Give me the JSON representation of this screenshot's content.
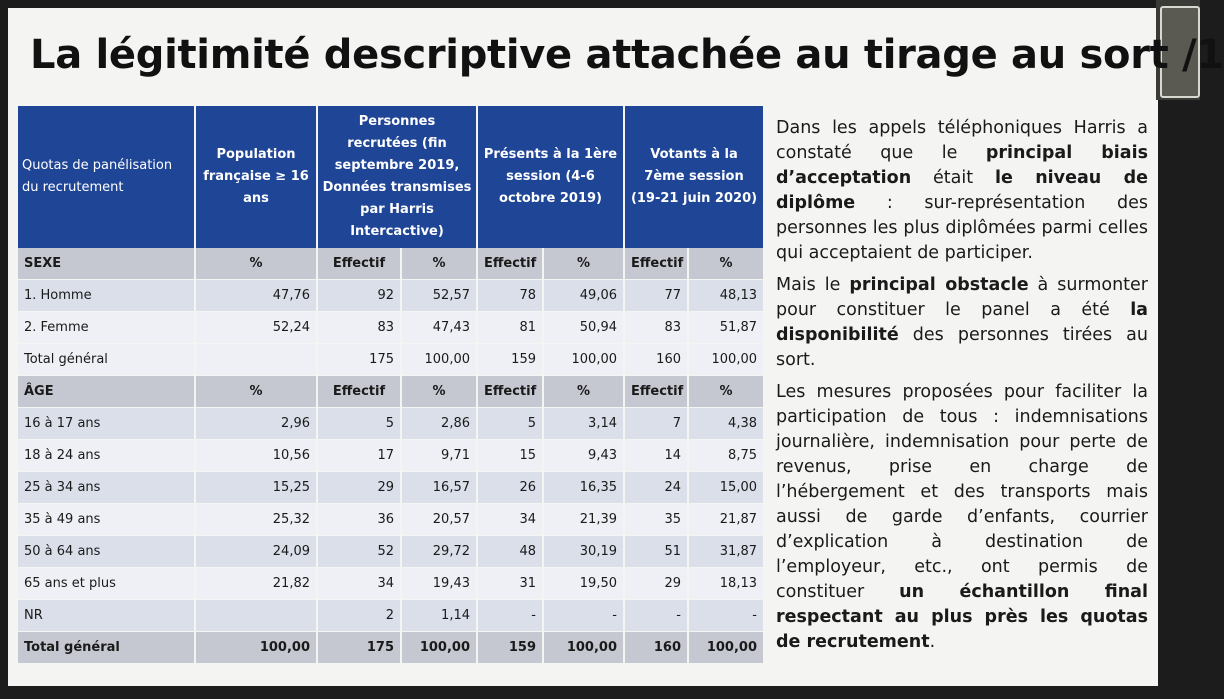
{
  "title": "La légitimité descriptive attachée au tirage au sort /1",
  "table": {
    "headers": [
      "Quotas de panélisation du recrutement",
      "Population française ≥ 16 ans",
      "Personnes recrutées (fin septembre 2019, Données transmises par Harris Intercactive)",
      "Présents à la 1ère session (4-6 octobre 2019)",
      "Votants à la 7ème session (19-21 juin 2020)"
    ],
    "sexe_header": [
      "SEXE",
      "%",
      "Effectif",
      "%",
      "Effectif",
      "%",
      "Effectif",
      "%"
    ],
    "sexe_rows": [
      [
        "1. Homme",
        "47,76",
        "92",
        "52,57",
        "78",
        "49,06",
        "77",
        "48,13"
      ],
      [
        "2. Femme",
        "52,24",
        "83",
        "47,43",
        "81",
        "50,94",
        "83",
        "51,87"
      ]
    ],
    "sexe_total": [
      "Total général",
      "",
      "175",
      "100,00",
      "159",
      "100,00",
      "160",
      "100,00"
    ],
    "age_header": [
      "ÂGE",
      "%",
      "Effectif",
      "%",
      "Effectif",
      "%",
      "Effectif",
      "%"
    ],
    "age_rows": [
      [
        "16 à 17 ans",
        "2,96",
        "5",
        "2,86",
        "5",
        "3,14",
        "7",
        "4,38"
      ],
      [
        "18 à 24 ans",
        "10,56",
        "17",
        "9,71",
        "15",
        "9,43",
        "14",
        "8,75"
      ],
      [
        "25 à 34 ans",
        "15,25",
        "29",
        "16,57",
        "26",
        "16,35",
        "24",
        "15,00"
      ],
      [
        "35 à 49 ans",
        "25,32",
        "36",
        "20,57",
        "34",
        "21,39",
        "35",
        "21,87"
      ],
      [
        "50 à 64 ans",
        "24,09",
        "52",
        "29,72",
        "48",
        "30,19",
        "51",
        "31,87"
      ],
      [
        "65 ans et plus",
        "21,82",
        "34",
        "19,43",
        "31",
        "19,50",
        "29",
        "18,13"
      ],
      [
        "NR",
        "",
        "2",
        "1,14",
        "-",
        "-",
        "-",
        "-"
      ]
    ],
    "age_total": [
      "Total général",
      "100,00",
      "175",
      "100,00",
      "159",
      "100,00",
      "160",
      "100,00"
    ]
  },
  "text": {
    "p1": [
      {
        "t": "Dans les appels téléphoniques Harris a constaté que le ",
        "b": false
      },
      {
        "t": "principal biais d’acceptation",
        "b": true
      },
      {
        "t": " était ",
        "b": false
      },
      {
        "t": "le niveau de diplôme",
        "b": true
      },
      {
        "t": " : sur-représentation des personnes les plus diplômées parmi celles qui acceptaient de participer.",
        "b": false
      }
    ],
    "p2": [
      {
        "t": "Mais le ",
        "b": false
      },
      {
        "t": "principal obstacle",
        "b": true
      },
      {
        "t": " à surmonter pour constituer le panel a été ",
        "b": false
      },
      {
        "t": "la disponibilité",
        "b": true
      },
      {
        "t": " des personnes tirées au sort.",
        "b": false
      }
    ],
    "p3": [
      {
        "t": "Les mesures proposées pour faciliter la participation de tous : indemnisations journalière, indemnisation pour perte de revenus, prise en charge de l’hébergement et des transports mais aussi de garde d’enfants, courrier d’explication à destination de l’employeur, etc., ont permis de constituer ",
        "b": false
      },
      {
        "t": "un échantillon final respectant au plus près les quotas de recrutement",
        "b": true
      },
      {
        "t": ".",
        "b": false
      }
    ]
  }
}
